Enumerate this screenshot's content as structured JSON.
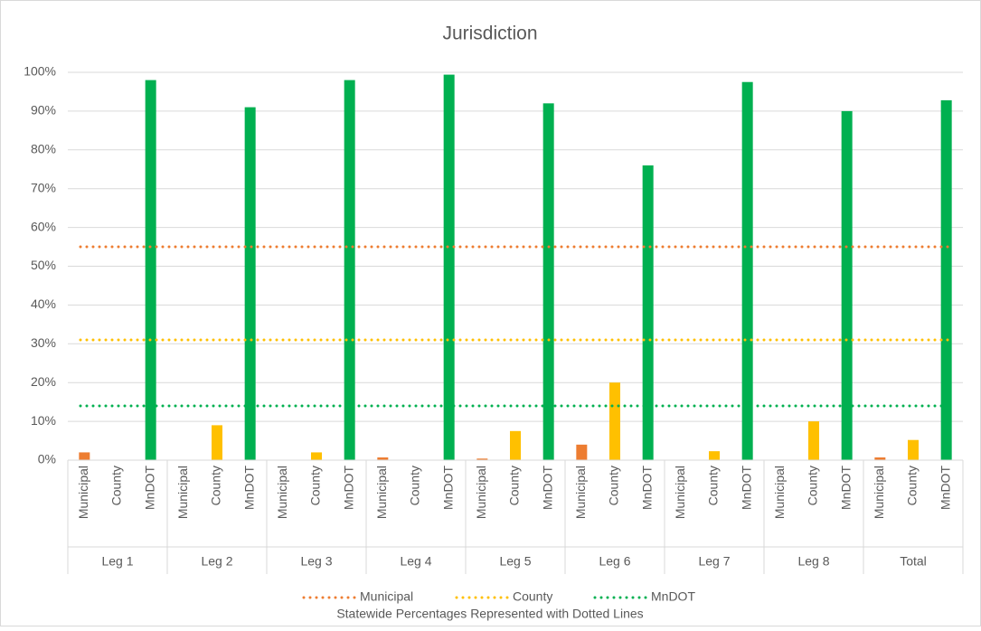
{
  "chart_data": {
    "type": "bar",
    "title": "Jurisdiction",
    "groups": [
      "Leg 1",
      "Leg 2",
      "Leg 3",
      "Leg 4",
      "Leg 5",
      "Leg 6",
      "Leg 7",
      "Leg 8",
      "Total"
    ],
    "series": [
      {
        "name": "Municipal",
        "color": "#ed7d31",
        "values": [
          2,
          0,
          0,
          0.7,
          0.4,
          4,
          0,
          0,
          0.7
        ]
      },
      {
        "name": "County",
        "color": "#ffc000",
        "values": [
          0,
          9,
          2,
          0,
          7.5,
          20,
          2.3,
          10,
          5.2
        ]
      },
      {
        "name": "MnDOT",
        "color": "#00b050",
        "values": [
          98,
          91,
          98,
          99.4,
          92,
          76,
          97.5,
          90,
          92.8
        ]
      }
    ],
    "reference_lines": [
      {
        "name": "Municipal",
        "color": "#ed7d31",
        "value": 55
      },
      {
        "name": "County",
        "color": "#ffc000",
        "value": 31
      },
      {
        "name": "MnDOT",
        "color": "#00b050",
        "value": 14
      }
    ],
    "legend_note": "Statewide Percentages Represented with Dotted Lines",
    "ylim": [
      0,
      100
    ],
    "yticks": [
      {
        "value": 0,
        "label": "0%"
      },
      {
        "value": 10,
        "label": "10%"
      },
      {
        "value": 20,
        "label": "20%"
      },
      {
        "value": 30,
        "label": "30%"
      },
      {
        "value": 40,
        "label": "40%"
      },
      {
        "value": 50,
        "label": "50%"
      },
      {
        "value": 60,
        "label": "60%"
      },
      {
        "value": 70,
        "label": "70%"
      },
      {
        "value": 80,
        "label": "80%"
      },
      {
        "value": 90,
        "label": "90%"
      },
      {
        "value": 100,
        "label": "100%"
      }
    ],
    "grid": true
  }
}
